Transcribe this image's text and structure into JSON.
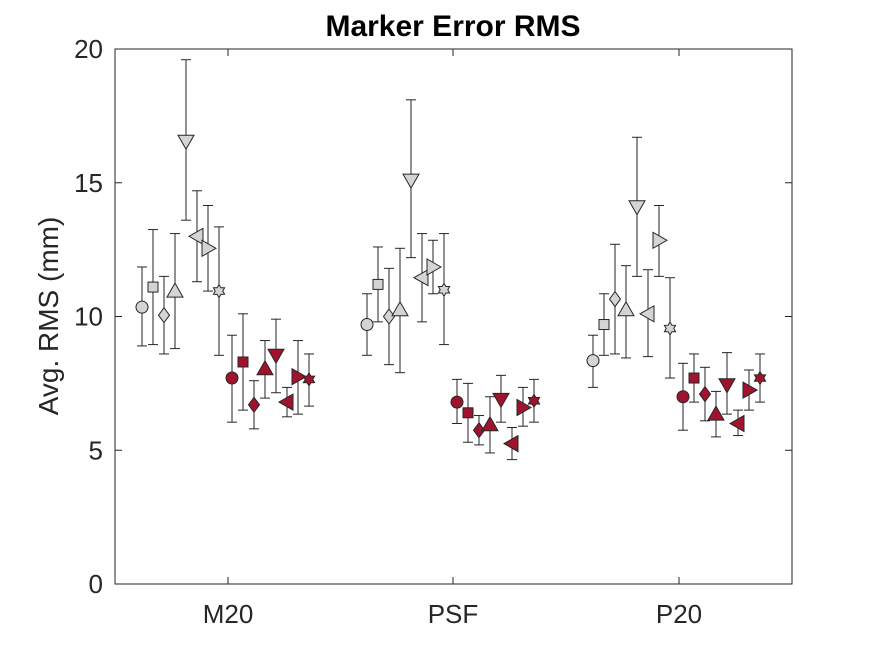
{
  "chart_data": {
    "type": "scatter",
    "title": "Marker Error RMS",
    "xlabel": "",
    "ylabel": "Avg. RMS (mm)",
    "categories": [
      "M20",
      "PSF",
      "P20"
    ],
    "ylim": [
      0,
      20
    ],
    "yticks": [
      0,
      5,
      10,
      15,
      20
    ],
    "grid": false,
    "legend": "none",
    "colors": {
      "gray_fill": "#d4d4d4",
      "red_fill": "#a0132d",
      "edge": "#262626"
    },
    "marker_order": [
      "circle",
      "square",
      "diamond",
      "triangle-up",
      "triangle-down",
      "triangle-left",
      "triangle-right",
      "hexagram"
    ],
    "series": [
      {
        "color_group": "gray",
        "marker": "circle",
        "means": [
          10.35,
          9.7,
          8.35
        ],
        "errors": [
          [
            8.9,
            11.85
          ],
          [
            8.55,
            10.85
          ],
          [
            7.35,
            9.3
          ]
        ]
      },
      {
        "color_group": "gray",
        "marker": "square",
        "means": [
          11.1,
          11.2,
          9.7
        ],
        "errors": [
          [
            8.95,
            13.25
          ],
          [
            9.8,
            12.6
          ],
          [
            8.55,
            10.85
          ]
        ]
      },
      {
        "color_group": "gray",
        "marker": "diamond",
        "means": [
          10.05,
          10.0,
          10.65
        ],
        "errors": [
          [
            8.6,
            11.5
          ],
          [
            8.2,
            11.8
          ],
          [
            8.6,
            12.7
          ]
        ]
      },
      {
        "color_group": "gray",
        "marker": "triangle-up",
        "means": [
          10.95,
          10.25,
          10.25
        ],
        "errors": [
          [
            8.8,
            13.1
          ],
          [
            7.9,
            12.55
          ],
          [
            8.45,
            11.9
          ]
        ]
      },
      {
        "color_group": "gray",
        "marker": "triangle-down",
        "means": [
          16.55,
          15.1,
          14.1
        ],
        "errors": [
          [
            13.6,
            19.6
          ],
          [
            12.2,
            18.1
          ],
          [
            11.5,
            16.7
          ]
        ]
      },
      {
        "color_group": "gray",
        "marker": "triangle-left",
        "means": [
          13.0,
          11.45,
          10.1
        ],
        "errors": [
          [
            11.3,
            14.7
          ],
          [
            9.8,
            13.1
          ],
          [
            8.5,
            11.75
          ]
        ]
      },
      {
        "color_group": "gray",
        "marker": "triangle-right",
        "means": [
          12.55,
          11.85,
          12.85
        ],
        "errors": [
          [
            10.95,
            14.15
          ],
          [
            10.85,
            12.85
          ],
          [
            11.5,
            14.15
          ]
        ]
      },
      {
        "color_group": "gray",
        "marker": "hexagram",
        "means": [
          10.95,
          11.0,
          9.55
        ],
        "errors": [
          [
            8.55,
            13.35
          ],
          [
            8.95,
            13.1
          ],
          [
            7.7,
            11.45
          ]
        ]
      },
      {
        "color_group": "red",
        "marker": "circle",
        "means": [
          7.7,
          6.8,
          7.0
        ],
        "errors": [
          [
            6.05,
            9.3
          ],
          [
            6.0,
            7.65
          ],
          [
            5.75,
            8.25
          ]
        ]
      },
      {
        "color_group": "red",
        "marker": "square",
        "means": [
          8.3,
          6.4,
          7.7
        ],
        "errors": [
          [
            6.5,
            10.1
          ],
          [
            5.3,
            7.5
          ],
          [
            6.8,
            8.6
          ]
        ]
      },
      {
        "color_group": "red",
        "marker": "diamond",
        "means": [
          6.7,
          5.75,
          7.1
        ],
        "errors": [
          [
            5.8,
            7.6
          ],
          [
            5.2,
            6.3
          ],
          [
            6.1,
            8.1
          ]
        ]
      },
      {
        "color_group": "red",
        "marker": "triangle-up",
        "means": [
          8.05,
          5.95,
          6.35
        ],
        "errors": [
          [
            6.95,
            9.1
          ],
          [
            4.9,
            7.0
          ],
          [
            5.5,
            7.2
          ]
        ]
      },
      {
        "color_group": "red",
        "marker": "triangle-down",
        "means": [
          8.55,
          6.9,
          7.45
        ],
        "errors": [
          [
            7.15,
            9.9
          ],
          [
            6.05,
            7.8
          ],
          [
            6.35,
            8.65
          ]
        ]
      },
      {
        "color_group": "red",
        "marker": "triangle-left",
        "means": [
          6.8,
          5.25,
          6.0
        ],
        "errors": [
          [
            6.25,
            7.35
          ],
          [
            4.65,
            5.85
          ],
          [
            5.55,
            6.5
          ]
        ]
      },
      {
        "color_group": "red",
        "marker": "triangle-right",
        "means": [
          7.75,
          6.6,
          7.25
        ],
        "errors": [
          [
            6.35,
            9.1
          ],
          [
            5.9,
            7.35
          ],
          [
            6.5,
            8.0
          ]
        ]
      },
      {
        "color_group": "red",
        "marker": "hexagram",
        "means": [
          7.65,
          6.85,
          7.7
        ],
        "errors": [
          [
            6.65,
            8.6
          ],
          [
            6.05,
            7.65
          ],
          [
            6.8,
            8.6
          ]
        ]
      }
    ]
  }
}
